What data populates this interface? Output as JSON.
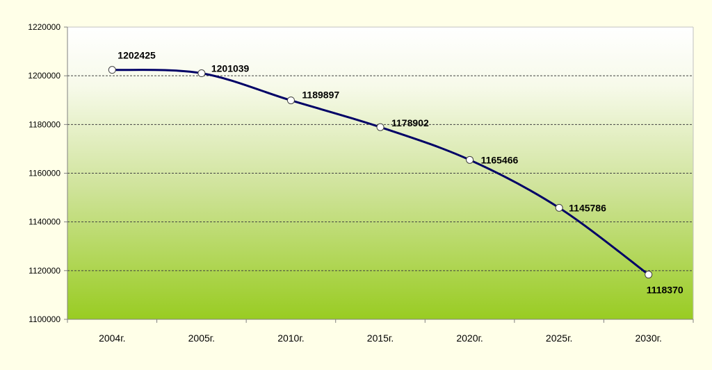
{
  "chart_data": {
    "type": "line",
    "title": "",
    "xlabel": "",
    "ylabel": "",
    "categories": [
      "2004г.",
      "2005г.",
      "2010г.",
      "2015г.",
      "2020г.",
      "2025г.",
      "2030г."
    ],
    "series": [
      {
        "values": [
          1202425,
          1201039,
          1189897,
          1178902,
          1165466,
          1145786,
          1118370
        ],
        "data_labels": [
          "1202425",
          "1201039",
          "1189897",
          "1178902",
          "1165466",
          "1145786",
          "1118370"
        ],
        "color": "#000066"
      }
    ],
    "ylim": [
      1100000,
      1220000
    ],
    "y_ticks": [
      "1100000",
      "1120000",
      "1140000",
      "1160000",
      "1180000",
      "1200000",
      "1220000"
    ],
    "grid": "horizontal dashed",
    "legend": "none",
    "background": "gradient light-yellow to yellow-green",
    "colors": {
      "line": "#000066",
      "marker_fill": "#ffffff",
      "grid": "#404040",
      "plot_top": "#ffffff",
      "plot_bottom": "#99cc22"
    }
  }
}
